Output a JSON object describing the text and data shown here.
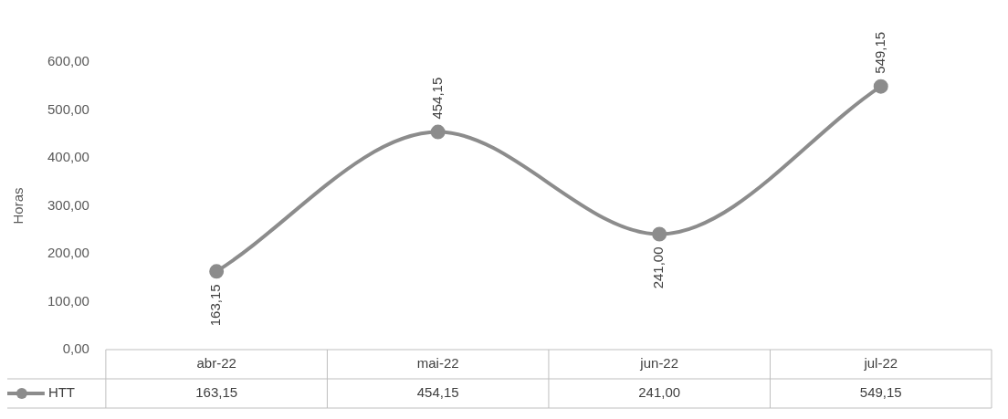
{
  "chart_data": {
    "type": "line",
    "ylabel": "Horas",
    "categories": [
      "abr-22",
      "mai-22",
      "jun-22",
      "jul-22"
    ],
    "series": [
      {
        "name": "HTT",
        "color": "#8c8c8c",
        "values": [
          163.15,
          454.15,
          241.0,
          549.15
        ],
        "value_labels": [
          "163,15",
          "454,15",
          "241,00",
          "549,15"
        ]
      }
    ],
    "ylim": [
      0,
      600
    ],
    "yticks": [
      {
        "value": 0,
        "label": "0,00"
      },
      {
        "value": 100,
        "label": "100,00"
      },
      {
        "value": 200,
        "label": "200,00"
      },
      {
        "value": 300,
        "label": "300,00"
      },
      {
        "value": 400,
        "label": "400,00"
      },
      {
        "value": 500,
        "label": "500,00"
      },
      {
        "value": 600,
        "label": "600,00"
      }
    ],
    "grid": false,
    "legend": "bottom",
    "marker": "circle",
    "line_style": "solid",
    "data_labels": true
  }
}
